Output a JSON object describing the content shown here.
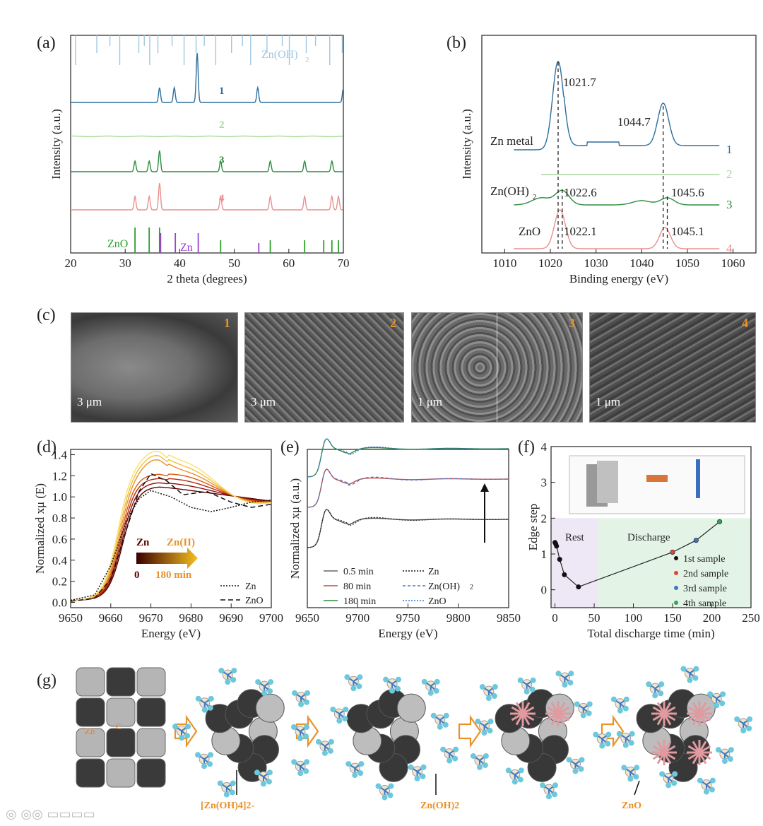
{
  "panels": {
    "a": {
      "label": "(a)",
      "xlabel": "2 theta (degrees)",
      "ylabel": "Intensity (a.u.)",
      "xticks": [
        "20",
        "30",
        "40",
        "50",
        "60",
        "70"
      ],
      "ref_top": "Zn(OH)",
      "ref_top_sub": "2",
      "ref_zno": "ZnO",
      "ref_zn": "Zn",
      "curve_labels": [
        "1",
        "2",
        "3",
        "4"
      ]
    },
    "b": {
      "label": "(b)",
      "xlabel": "Binding energy (eV)",
      "ylabel": "Intensity (a.u.)",
      "xticks": [
        "1010",
        "1020",
        "1030",
        "1040",
        "1050",
        "1060"
      ],
      "species": [
        "Zn metal",
        "Zn(OH)",
        "ZnO"
      ],
      "species_sub": "2",
      "peaks": [
        "1021.7",
        "1044.7",
        "1022.6",
        "1045.6",
        "1022.1",
        "1045.1"
      ],
      "curve_labels": [
        "1",
        "2",
        "3",
        "4"
      ]
    },
    "c": {
      "label": "(c)",
      "images": [
        {
          "num": "1",
          "scale": "3 μm"
        },
        {
          "num": "2",
          "scale": "3 μm"
        },
        {
          "num": "3",
          "scale": "1 μm"
        },
        {
          "num": "4",
          "scale": "1 μm"
        }
      ]
    },
    "d": {
      "label": "(d)",
      "xlabel": "Energy (eV)",
      "ylabel": "Normalized xμ (E)",
      "xticks": [
        "9650",
        "9660",
        "9670",
        "9680",
        "9690",
        "9700"
      ],
      "yticks": [
        "0.0",
        "0.2",
        "0.4",
        "0.6",
        "0.8",
        "1.0",
        "1.2",
        "1.4"
      ],
      "grad_left": "Zn",
      "grad_right": "Zn(II)",
      "grad_start": "0",
      "grad_end": "180 min",
      "legend": [
        "Zn",
        "ZnO"
      ]
    },
    "e": {
      "label": "(e)",
      "xlabel": "Energy (eV)",
      "ylabel": "Normalized xμ (a.u.)",
      "xticks": [
        "9650",
        "9700",
        "9750",
        "9800",
        "9850"
      ],
      "legend_left": [
        "0.5 min",
        "80 min",
        "180 min"
      ],
      "legend_right": [
        "Zn",
        "Zn(OH)",
        "ZnO"
      ],
      "legend_right_sub": "2"
    },
    "f": {
      "label": "(f)",
      "xlabel": "Total discharge time (min)",
      "ylabel": "Edge step",
      "xticks": [
        "0",
        "50",
        "100",
        "150",
        "200",
        "250"
      ],
      "yticks": [
        "0",
        "1",
        "2",
        "3",
        "4"
      ],
      "region_rest": "Rest",
      "region_discharge": "Discharge",
      "legend": [
        "1st sample",
        "2nd sample",
        "3rd sample",
        "4th sample"
      ],
      "legend_sup": "st"
    },
    "g": {
      "label": "(g)",
      "atom_labels": [
        "Zn",
        "C"
      ],
      "captions": [
        "[Zn(OH)4]2-",
        "Zn(OH)2",
        "ZnO"
      ]
    }
  },
  "chart_data": [
    {
      "type": "line",
      "title": "",
      "xlabel": "2 theta (degrees)",
      "ylabel": "Intensity (a.u.)",
      "xlim": [
        20,
        70
      ],
      "series": [
        {
          "name": "1",
          "peaks_2theta": [
            36.3,
            39.0,
            43.2,
            54.3,
            70.0
          ]
        },
        {
          "name": "2",
          "peaks_2theta": []
        },
        {
          "name": "3",
          "peaks_2theta": [
            31.8,
            34.4,
            36.3,
            47.5,
            56.6,
            62.9,
            67.9
          ]
        },
        {
          "name": "4",
          "peaks_2theta": [
            31.8,
            34.4,
            36.3,
            47.5,
            56.6,
            62.9,
            67.9,
            69.1
          ]
        }
      ],
      "reference_lines": {
        "ZnO": [
          31.8,
          34.4,
          36.3,
          47.5,
          56.6,
          62.9,
          66.4,
          67.9,
          69.1
        ],
        "Zn": [
          36.3,
          39.0,
          43.2,
          54.3
        ],
        "Zn(OH)2": [
          20.9,
          24.8,
          27.2,
          29.0,
          32.5,
          33.5,
          34.5,
          36.0,
          38.6,
          40.8,
          43.0,
          44.5,
          46.6,
          49.5,
          51.5,
          53.0,
          56.0,
          58.8,
          60.1,
          63.2,
          64.9,
          67.5,
          69.8
        ]
      }
    },
    {
      "type": "line",
      "xlabel": "Binding energy (eV)",
      "ylabel": "Intensity (a.u.)",
      "xlim": [
        1005,
        1065
      ],
      "series": [
        {
          "name": "1",
          "label": "Zn metal",
          "peaks_eV": [
            1021.7,
            1044.7
          ]
        },
        {
          "name": "2",
          "peaks_eV": []
        },
        {
          "name": "3",
          "label": "Zn(OH)2",
          "peaks_eV": [
            1022.6,
            1045.6
          ]
        },
        {
          "name": "4",
          "label": "ZnO",
          "peaks_eV": [
            1022.1,
            1045.1
          ]
        }
      ]
    },
    {
      "type": "line",
      "xlabel": "Energy (eV)",
      "ylabel": "Normalized xμ (E)",
      "xlim": [
        9650,
        9700
      ],
      "ylim": [
        -0.05,
        1.45
      ],
      "series": [
        {
          "name": "Zn",
          "points": [
            [
              9650,
              0.02
            ],
            [
              9656,
              0.07
            ],
            [
              9660,
              0.35
            ],
            [
              9664,
              0.78
            ],
            [
              9667,
              0.98
            ],
            [
              9670,
              1.06
            ],
            [
              9675,
              1.0
            ],
            [
              9680,
              0.9
            ],
            [
              9685,
              0.86
            ],
            [
              9690,
              0.9
            ],
            [
              9695,
              0.95
            ],
            [
              9700,
              0.97
            ]
          ]
        },
        {
          "name": "ZnO",
          "points": [
            [
              9650,
              0.01
            ],
            [
              9656,
              0.04
            ],
            [
              9660,
              0.22
            ],
            [
              9664,
              0.7
            ],
            [
              9667,
              1.05
            ],
            [
              9670,
              1.22
            ],
            [
              9674,
              1.15
            ],
            [
              9678,
              1.02
            ],
            [
              9684,
              1.05
            ],
            [
              9690,
              0.95
            ],
            [
              9695,
              0.9
            ],
            [
              9700,
              0.93
            ]
          ]
        }
      ]
    },
    {
      "type": "line",
      "xlabel": "Energy (eV)",
      "ylabel": "Normalized xμ (a.u.)",
      "xlim": [
        9650,
        9850
      ],
      "series": [
        {
          "name": "0.5 min"
        },
        {
          "name": "80 min"
        },
        {
          "name": "180 min"
        },
        {
          "name": "Zn"
        },
        {
          "name": "Zn(OH)2"
        },
        {
          "name": "ZnO"
        }
      ]
    },
    {
      "type": "scatter",
      "xlabel": "Total discharge time (min)",
      "ylabel": "Edge step",
      "xlim": [
        -5,
        250
      ],
      "ylim": [
        -0.5,
        4
      ],
      "series": [
        {
          "name": "1st sample",
          "x": [
            0,
            1,
            2,
            6,
            12,
            30
          ],
          "y": [
            1.32,
            1.28,
            1.22,
            0.85,
            0.42,
            0.08
          ]
        },
        {
          "name": "2nd sample",
          "x": [
            150
          ],
          "y": [
            1.05
          ]
        },
        {
          "name": "3rd sample",
          "x": [
            180
          ],
          "y": [
            1.38
          ]
        },
        {
          "name": "4th sample",
          "x": [
            210
          ],
          "y": [
            1.9
          ]
        }
      ]
    }
  ]
}
